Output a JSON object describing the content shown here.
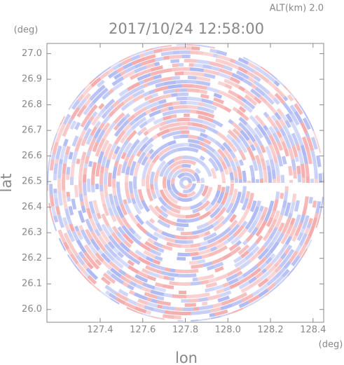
{
  "chart_data": {
    "type": "radar-ppi",
    "title": "2017/10/24 12:58:00",
    "altitude_label": "ALT(km) 2.0",
    "x_label": "lon",
    "y_label": "lat",
    "x_unit": "(deg)",
    "y_unit": "(deg)",
    "xlim": [
      127.15,
      128.45
    ],
    "ylim": [
      25.95,
      27.04
    ],
    "xticks": [
      127.4,
      127.6,
      127.8,
      {
        "value": 128.0,
        "label": "128.0"
      },
      128.2,
      128.4
    ],
    "yticks": [
      {
        "value": 26.0,
        "label": "26.0"
      },
      26.1,
      26.2,
      26.3,
      26.4,
      26.5,
      26.6,
      26.7,
      26.8,
      26.9,
      {
        "value": 27.0,
        "label": "27.0"
      }
    ],
    "colors": [
      "#f4a6a6",
      "#a9b4f2"
    ]
  }
}
